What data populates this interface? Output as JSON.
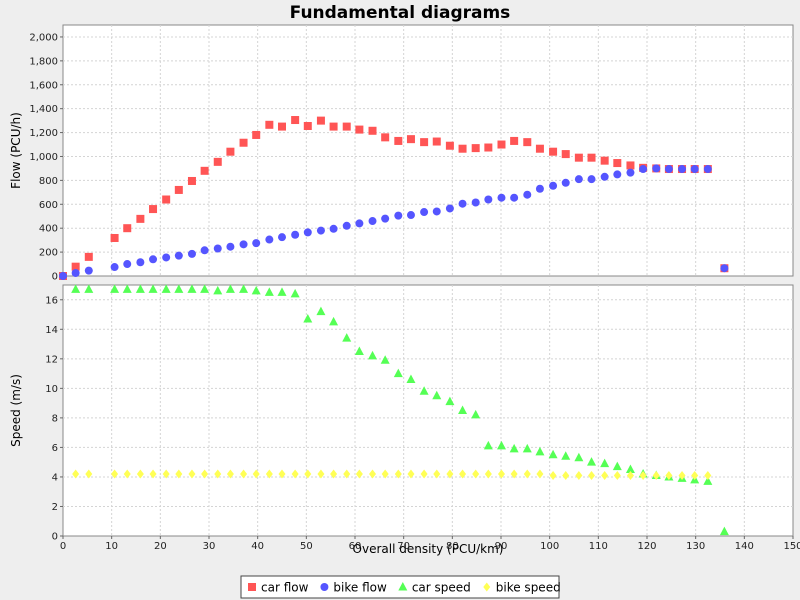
{
  "chart_data": {
    "type": "scatter",
    "title": "Fundamental diagrams",
    "xlabel": "Overall density (PCU/km)",
    "xlim": [
      0,
      150
    ],
    "x_ticks": [
      "0",
      "10",
      "20",
      "30",
      "40",
      "50",
      "60",
      "70",
      "80",
      "90",
      "100",
      "110",
      "120",
      "130",
      "140",
      "150"
    ],
    "grid": true,
    "legend_position": "bottom",
    "panels": [
      {
        "ylabel": "Flow (PCU/h)",
        "ylim": [
          0,
          2100
        ],
        "y_ticks": [
          "0",
          "200",
          "400",
          "600",
          "800",
          "1,000",
          "1,200",
          "1,400",
          "1,600",
          "1,800",
          "2,000"
        ],
        "series": [
          {
            "name": "car flow",
            "marker": "square",
            "color": "#ff5555",
            "x": [
              0,
              2.6,
              5.3,
              10.6,
              13.2,
              15.9,
              18.5,
              21.2,
              23.8,
              26.5,
              29.1,
              31.8,
              34.4,
              37.1,
              39.7,
              42.4,
              45.0,
              47.7,
              50.3,
              53.0,
              55.6,
              58.3,
              60.9,
              63.6,
              66.2,
              68.9,
              71.5,
              74.2,
              76.8,
              79.5,
              82.1,
              84.8,
              87.4,
              90.1,
              92.7,
              95.4,
              98.0,
              100.7,
              103.3,
              106.0,
              108.6,
              111.3,
              113.9,
              116.6,
              119.2,
              121.9,
              124.5,
              127.2,
              129.8,
              132.5,
              135.9
            ],
            "y": [
              0,
              78,
              160,
              318,
              400,
              478,
              560,
              640,
              720,
              795,
              880,
              955,
              1040,
              1115,
              1180,
              1265,
              1250,
              1305,
              1255,
              1300,
              1250,
              1250,
              1225,
              1215,
              1160,
              1130,
              1145,
              1120,
              1125,
              1090,
              1065,
              1070,
              1075,
              1100,
              1130,
              1120,
              1065,
              1040,
              1020,
              990,
              990,
              965,
              945,
              925,
              905,
              900,
              895,
              895,
              895,
              895,
              65
            ]
          },
          {
            "name": "bike flow",
            "marker": "circle",
            "color": "#5555ff",
            "x": [
              0,
              2.6,
              5.3,
              10.6,
              13.2,
              15.9,
              18.5,
              21.2,
              23.8,
              26.5,
              29.1,
              31.8,
              34.4,
              37.1,
              39.7,
              42.4,
              45.0,
              47.7,
              50.3,
              53.0,
              55.6,
              58.3,
              60.9,
              63.6,
              66.2,
              68.9,
              71.5,
              74.2,
              76.8,
              79.5,
              82.1,
              84.8,
              87.4,
              90.1,
              92.7,
              95.4,
              98.0,
              100.7,
              103.3,
              106.0,
              108.6,
              111.3,
              113.9,
              116.6,
              119.2,
              121.9,
              124.5,
              127.2,
              129.8,
              132.5,
              135.9
            ],
            "y": [
              0,
              25,
              45,
              75,
              100,
              115,
              140,
              155,
              170,
              185,
              215,
              230,
              245,
              265,
              275,
              305,
              325,
              345,
              365,
              380,
              395,
              420,
              440,
              460,
              480,
              505,
              510,
              535,
              540,
              565,
              605,
              615,
              640,
              655,
              655,
              680,
              730,
              755,
              780,
              810,
              810,
              830,
              850,
              865,
              895,
              900,
              895,
              895,
              895,
              895,
              65
            ]
          }
        ]
      },
      {
        "ylabel": "Speed (m/s)",
        "ylim": [
          0,
          17
        ],
        "y_ticks": [
          "0",
          "2",
          "4",
          "6",
          "8",
          "10",
          "12",
          "14",
          "16"
        ],
        "series": [
          {
            "name": "car speed",
            "marker": "triangle",
            "color": "#55ff55",
            "x": [
              2.6,
              5.3,
              10.6,
              13.2,
              15.9,
              18.5,
              21.2,
              23.8,
              26.5,
              29.1,
              31.8,
              34.4,
              37.1,
              39.7,
              42.4,
              45.0,
              47.7,
              50.3,
              53.0,
              55.6,
              58.3,
              60.9,
              63.6,
              66.2,
              68.9,
              71.5,
              74.2,
              76.8,
              79.5,
              82.1,
              84.8,
              87.4,
              90.1,
              92.7,
              95.4,
              98.0,
              100.7,
              103.3,
              106.0,
              108.6,
              111.3,
              113.9,
              116.6,
              119.2,
              121.9,
              124.5,
              127.2,
              129.8,
              132.5,
              135.9
            ],
            "y": [
              16.7,
              16.7,
              16.7,
              16.7,
              16.7,
              16.7,
              16.7,
              16.7,
              16.7,
              16.7,
              16.6,
              16.7,
              16.7,
              16.6,
              16.5,
              16.5,
              16.4,
              14.7,
              15.2,
              14.5,
              13.4,
              12.5,
              12.2,
              11.9,
              11.0,
              10.6,
              9.8,
              9.5,
              9.1,
              8.5,
              8.2,
              6.1,
              6.1,
              5.9,
              5.9,
              5.7,
              5.5,
              5.4,
              5.3,
              5.0,
              4.9,
              4.7,
              4.5,
              4.2,
              4.1,
              4.0,
              3.9,
              3.8,
              3.7,
              0.3
            ]
          },
          {
            "name": "bike speed",
            "marker": "diamond",
            "color": "#ffff55",
            "x": [
              2.6,
              5.3,
              10.6,
              13.2,
              15.9,
              18.5,
              21.2,
              23.8,
              26.5,
              29.1,
              31.8,
              34.4,
              37.1,
              39.7,
              42.4,
              45.0,
              47.7,
              50.3,
              53.0,
              55.6,
              58.3,
              60.9,
              63.6,
              66.2,
              68.9,
              71.5,
              74.2,
              76.8,
              79.5,
              82.1,
              84.8,
              87.4,
              90.1,
              92.7,
              95.4,
              98.0,
              100.7,
              103.3,
              106.0,
              108.6,
              111.3,
              113.9,
              116.6,
              119.2,
              121.9,
              124.5,
              127.2,
              129.8,
              132.5
            ],
            "y": [
              4.2,
              4.2,
              4.2,
              4.2,
              4.2,
              4.2,
              4.2,
              4.2,
              4.2,
              4.2,
              4.2,
              4.2,
              4.2,
              4.2,
              4.2,
              4.2,
              4.2,
              4.2,
              4.2,
              4.2,
              4.2,
              4.2,
              4.2,
              4.2,
              4.2,
              4.2,
              4.2,
              4.2,
              4.2,
              4.2,
              4.2,
              4.2,
              4.2,
              4.2,
              4.2,
              4.2,
              4.1,
              4.1,
              4.1,
              4.1,
              4.1,
              4.1,
              4.1,
              4.1,
              4.1,
              4.1,
              4.1,
              4.1,
              4.1
            ]
          }
        ]
      }
    ]
  }
}
